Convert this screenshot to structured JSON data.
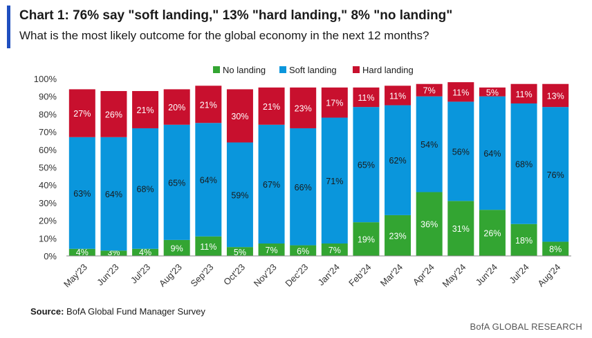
{
  "header": {
    "title": "Chart 1: 76% say \"soft landing,\" 13% \"hard landing,\" 8% \"no landing\"",
    "subtitle": "What is the most likely outcome for the global economy in the next 12 months?"
  },
  "footer": {
    "source_label": "Source:",
    "source_text": " BofA Global Fund Manager Survey",
    "brand": "BofA GLOBAL RESEARCH"
  },
  "colors": {
    "no_landing": "#33a532",
    "soft_landing": "#0a96dc",
    "hard_landing": "#c8102e",
    "accent": "#1f4fbf"
  },
  "chart_data": {
    "type": "bar",
    "stacked": true,
    "legend_position": "top-center",
    "grid": false,
    "ylim": [
      0,
      100
    ],
    "yticks": [
      "0%",
      "10%",
      "20%",
      "30%",
      "40%",
      "50%",
      "60%",
      "70%",
      "80%",
      "90%",
      "100%"
    ],
    "categories": [
      "May'23",
      "Jun'23",
      "Jul'23",
      "Aug'23",
      "Sep'23",
      "Oct'23",
      "Nov'23",
      "Dec'23",
      "Jan'24",
      "Feb'24",
      "Mar'24",
      "Apr'24",
      "May'24",
      "Jun'24",
      "Jul'24",
      "Aug'24"
    ],
    "series": [
      {
        "name": "No landing",
        "values": [
          4,
          3,
          4,
          9,
          11,
          5,
          7,
          6,
          7,
          19,
          23,
          36,
          31,
          26,
          18,
          8
        ],
        "labels": [
          "4%",
          "3%",
          "4%",
          "9%",
          "11%",
          "5%",
          "7%",
          "6%",
          "7%",
          "19%",
          "23%",
          "36%",
          "31%",
          "26%",
          "18%",
          "8%"
        ]
      },
      {
        "name": "Soft landing",
        "values": [
          63,
          64,
          68,
          65,
          64,
          59,
          67,
          66,
          71,
          65,
          62,
          54,
          56,
          64,
          68,
          76
        ],
        "labels": [
          "63%",
          "64%",
          "68%",
          "65%",
          "64%",
          "59%",
          "67%",
          "66%",
          "71%",
          "65%",
          "62%",
          "54%",
          "56%",
          "64%",
          "68%",
          "76%"
        ]
      },
      {
        "name": "Hard landing",
        "values": [
          27,
          26,
          21,
          20,
          21,
          30,
          21,
          23,
          17,
          11,
          11,
          7,
          11,
          5,
          11,
          13
        ],
        "labels": [
          "27%",
          "26%",
          "21%",
          "20%",
          "21%",
          "30%",
          "21%",
          "23%",
          "17%",
          "11%",
          "11%",
          "7%",
          "11%",
          "5%",
          "11%",
          "13%"
        ]
      }
    ]
  }
}
